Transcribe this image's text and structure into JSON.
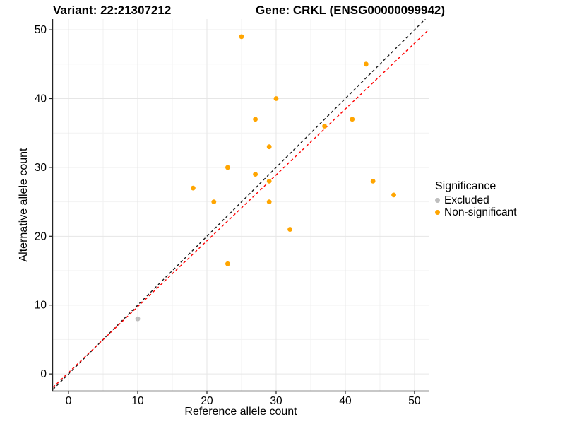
{
  "titles": {
    "variant": "Variant: 22:21307212",
    "gene": "Gene: CRKL (ENSG00000099942)"
  },
  "chart_data": {
    "type": "scatter",
    "xlabel": "Reference allele count",
    "ylabel": "Alternative allele count",
    "xlim": [
      -2.25,
      52.15
    ],
    "ylim": [
      -2.45,
      51.55
    ],
    "x_ticks": [
      0,
      10,
      20,
      30,
      40,
      50
    ],
    "y_ticks": [
      0,
      10,
      20,
      30,
      40,
      50
    ],
    "minor_ticks": [
      5,
      15,
      25,
      35,
      45
    ],
    "grid": true,
    "colors": {
      "major_grid": "#e6e6e6",
      "minor_grid": "#f2f2f2",
      "axis": "#222222",
      "tick_text": "#000000"
    },
    "series": [
      {
        "name": "Non-significant",
        "color": "#FFA500",
        "points": [
          [
            25,
            49
          ],
          [
            43,
            45
          ],
          [
            30,
            40
          ],
          [
            27,
            37
          ],
          [
            41,
            37
          ],
          [
            37,
            36
          ],
          [
            29,
            33
          ],
          [
            23,
            30
          ],
          [
            27,
            29
          ],
          [
            29,
            28
          ],
          [
            44,
            28
          ],
          [
            18,
            27
          ],
          [
            47,
            26
          ],
          [
            21,
            25
          ],
          [
            29,
            25
          ],
          [
            32,
            21
          ],
          [
            23,
            16
          ]
        ]
      },
      {
        "name": "Excluded",
        "color": "#BEBEBE",
        "points": [
          [
            10,
            8
          ]
        ]
      }
    ],
    "lines": [
      {
        "name": "identity-line",
        "slope": 1,
        "intercept": 0,
        "color": "#1a1a1a",
        "dash": "4 3.5",
        "width": 1.4
      },
      {
        "name": "fitted-line",
        "slope": 0.957,
        "intercept": 0.2,
        "color": "#FF0000",
        "dash": "4 3.5",
        "width": 1.4
      }
    ],
    "legend": {
      "title": "Significance",
      "position": "right",
      "items": [
        {
          "label": "Excluded",
          "color": "#BEBEBE"
        },
        {
          "label": "Non-significant",
          "color": "#FFA500"
        }
      ]
    }
  }
}
